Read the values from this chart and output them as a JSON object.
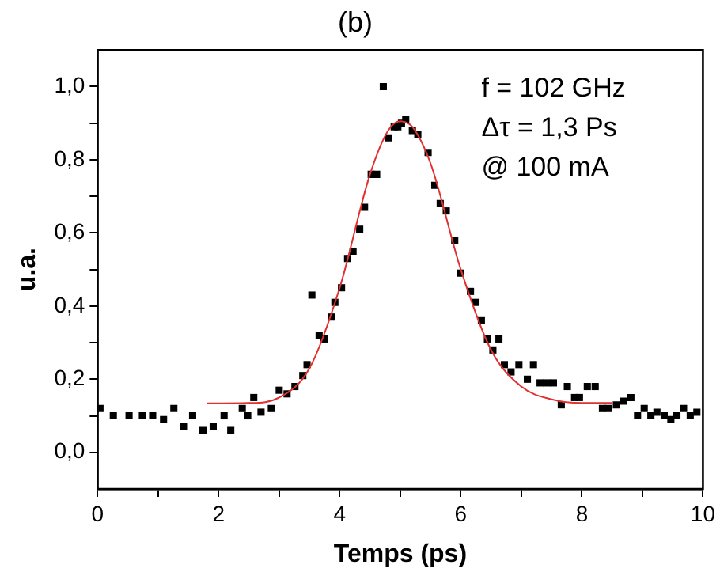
{
  "chart_data": {
    "type": "scatter",
    "title": "(b)",
    "xlabel": "Temps (ps)",
    "ylabel": "u.a.",
    "xlim": [
      0,
      10
    ],
    "ylim": [
      -0.1,
      1.1
    ],
    "xticks": [
      0,
      {
        "value": 1,
        "label": null
      },
      2,
      {
        "value": 3,
        "label": null
      },
      4,
      {
        "value": 5,
        "label": null
      },
      6,
      {
        "value": 7,
        "label": null
      },
      8,
      {
        "value": 9,
        "label": null
      },
      10
    ],
    "yticks": [
      {
        "value": 0,
        "label": "0,0"
      },
      {
        "value": 0.1,
        "label": null
      },
      {
        "value": 0.2,
        "label": "0,2"
      },
      {
        "value": 0.3,
        "label": null
      },
      {
        "value": 0.4,
        "label": "0,4"
      },
      {
        "value": 0.5,
        "label": null
      },
      {
        "value": 0.6,
        "label": "0,6"
      },
      {
        "value": 0.7,
        "label": null
      },
      {
        "value": 0.8,
        "label": "0,8"
      },
      {
        "value": 0.9,
        "label": null
      },
      {
        "value": 1.0,
        "label": "1,0"
      }
    ],
    "grid": false,
    "legend": false,
    "annotations": [
      "f = 102 GHz",
      "Δτ = 1,3 Ps",
      "@ 100 mA"
    ],
    "series": [
      {
        "type": "scatter",
        "marker": "square",
        "color": "#000000",
        "x": [
          0.04,
          0.26,
          0.52,
          0.74,
          0.91,
          1.09,
          1.26,
          1.42,
          1.57,
          1.74,
          1.91,
          2.09,
          2.2,
          2.39,
          2.48,
          2.58,
          2.7,
          2.87,
          3.0,
          3.13,
          3.26,
          3.39,
          3.46,
          3.54,
          3.66,
          3.74,
          3.86,
          3.92,
          4.03,
          4.13,
          4.22,
          4.33,
          4.41,
          4.52,
          4.61,
          4.72,
          4.81,
          4.9,
          4.96,
          5.02,
          5.09,
          5.2,
          5.29,
          5.46,
          5.57,
          5.66,
          5.76,
          5.9,
          6.0,
          6.16,
          6.25,
          6.34,
          6.44,
          6.53,
          6.63,
          6.72,
          6.83,
          6.96,
          7.1,
          7.2,
          7.31,
          7.42,
          7.53,
          7.66,
          7.76,
          7.88,
          7.96,
          8.09,
          8.22,
          8.34,
          8.44,
          8.57,
          8.69,
          8.81,
          8.92,
          9.03,
          9.14,
          9.24,
          9.36,
          9.47,
          9.57,
          9.68,
          9.79,
          9.9
        ],
        "values": [
          0.12,
          0.1,
          0.1,
          0.1,
          0.1,
          0.09,
          0.12,
          0.07,
          0.1,
          0.06,
          0.07,
          0.1,
          0.06,
          0.12,
          0.1,
          0.15,
          0.11,
          0.12,
          0.17,
          0.16,
          0.18,
          0.21,
          0.24,
          0.43,
          0.32,
          0.31,
          0.37,
          0.41,
          0.45,
          0.53,
          0.55,
          0.61,
          0.67,
          0.76,
          0.76,
          1.0,
          0.86,
          0.89,
          0.89,
          0.9,
          0.91,
          0.88,
          0.87,
          0.82,
          0.73,
          0.68,
          0.66,
          0.58,
          0.49,
          0.44,
          0.41,
          0.36,
          0.31,
          0.28,
          0.31,
          0.24,
          0.22,
          0.24,
          0.2,
          0.24,
          0.19,
          0.19,
          0.19,
          0.13,
          0.18,
          0.15,
          0.15,
          0.18,
          0.18,
          0.12,
          0.12,
          0.13,
          0.14,
          0.15,
          0.1,
          0.12,
          0.1,
          0.11,
          0.1,
          0.09,
          0.1,
          0.12,
          0.1,
          0.11
        ]
      },
      {
        "type": "line",
        "marker": "none",
        "line_style": "solid",
        "color": "#e03030",
        "x": [
          1.8,
          2.5,
          3.0,
          3.5,
          4.0,
          4.5,
          4.8,
          5.0,
          5.2,
          5.5,
          6.0,
          6.5,
          7.0,
          7.5,
          8.0,
          8.5
        ],
        "values": [
          0.134,
          0.135,
          0.15,
          0.23,
          0.45,
          0.76,
          0.88,
          0.905,
          0.89,
          0.79,
          0.5,
          0.28,
          0.18,
          0.145,
          0.135,
          0.135
        ]
      }
    ]
  }
}
